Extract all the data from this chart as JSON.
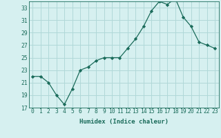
{
  "x": [
    0,
    1,
    2,
    3,
    4,
    5,
    6,
    7,
    8,
    9,
    10,
    11,
    12,
    13,
    14,
    15,
    16,
    17,
    18,
    19,
    20,
    21,
    22,
    23
  ],
  "y": [
    22.0,
    22.0,
    21.0,
    19.0,
    17.5,
    20.0,
    23.0,
    23.5,
    24.5,
    25.0,
    25.0,
    25.0,
    26.5,
    28.0,
    30.0,
    32.5,
    34.0,
    33.5,
    34.5,
    31.5,
    30.0,
    27.5,
    27.0,
    26.5
  ],
  "line_color": "#1a6b5a",
  "marker": "D",
  "marker_size": 2.2,
  "bg_color": "#d6f0f0",
  "grid_color": "#b0d8d8",
  "xlabel": "Humidex (Indice chaleur)",
  "xlim": [
    -0.5,
    23.5
  ],
  "ylim": [
    17,
    34
  ],
  "yticks": [
    17,
    19,
    21,
    23,
    25,
    27,
    29,
    31,
    33
  ],
  "xtick_labels": [
    "0",
    "1",
    "2",
    "3",
    "4",
    "5",
    "6",
    "7",
    "8",
    "9",
    "10",
    "11",
    "12",
    "13",
    "14",
    "15",
    "16",
    "17",
    "18",
    "19",
    "20",
    "21",
    "22",
    "23"
  ],
  "label_fontsize": 6.5,
  "tick_fontsize": 5.8
}
